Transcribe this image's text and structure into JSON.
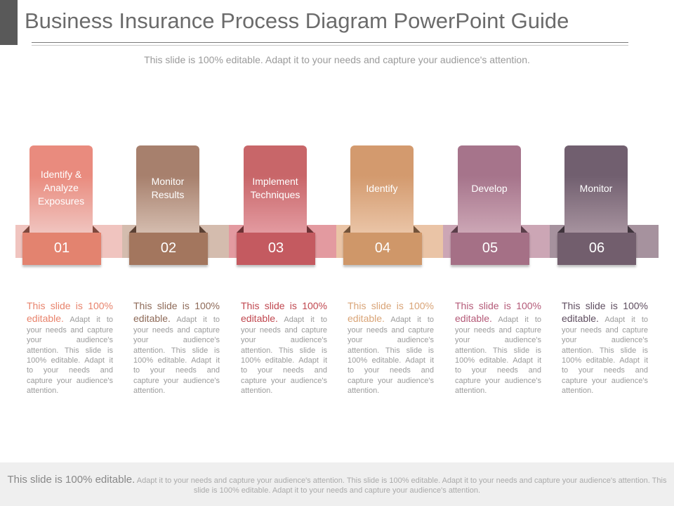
{
  "header": {
    "title": "Business Insurance Process Diagram PowerPoint Guide",
    "subtitle": "This slide is 100% editable. Adapt it to your needs and capture your audience's attention."
  },
  "steps": [
    {
      "label": "Identify & Analyze Exposures",
      "number": "01",
      "color_tab": "#e98b7e",
      "color_dark": "#e3836f",
      "color_band": "#f0c4bf",
      "desc_lead": "This slide is 100% editable.",
      "desc_body": "Adapt it to your needs and capture your audience's attention. This slide is 100% editable. Adapt it to your needs and capture your audience's attention."
    },
    {
      "label": "Monitor Results",
      "number": "02",
      "color_tab": "#a7806d",
      "color_dark": "#a3765e",
      "color_band": "#d4bcae",
      "desc_lead": "This slide is 100% editable.",
      "desc_body": "Adapt it to your needs and capture your audience's attention. This slide is 100% editable. Adapt it to your needs and capture your audience's attention."
    },
    {
      "label": "Implement Techniques",
      "number": "03",
      "color_tab": "#c86669",
      "color_dark": "#c45a60",
      "color_band": "#e39aa0",
      "desc_lead": "This slide is 100% editable.",
      "desc_body": "Adapt it to your needs and capture your audience's attention. This slide is 100% editable. Adapt it to your needs and capture your audience's attention."
    },
    {
      "label": "Identify",
      "number": "04",
      "color_tab": "#d39a6e",
      "color_dark": "#cf9769",
      "color_band": "#eac4a6",
      "desc_lead": "This slide is 100% editable.",
      "desc_body": "Adapt it to your needs and capture your audience's attention. This slide is 100% editable. Adapt it to your needs and capture your audience's attention."
    },
    {
      "label": "Develop",
      "number": "05",
      "color_tab": "#a6748b",
      "color_dark": "#a57086",
      "color_band": "#cca6b5",
      "desc_lead": "This slide is 100% editable.",
      "desc_body": "Adapt it to your needs and capture your audience's attention. This slide is 100% editable. Adapt it to your needs and capture your audience's attention."
    },
    {
      "label": "Monitor",
      "number": "06",
      "color_tab": "#715f6f",
      "color_dark": "#725e6d",
      "color_band": "#a6929e",
      "desc_lead": "This slide is 100% editable.",
      "desc_body": "Adapt it to your needs and capture your audience's attention. This slide is 100% editable. Adapt it to your needs and capture your audience's attention."
    }
  ],
  "lead_colors": [
    "#e8836c",
    "#8e6a58",
    "#c0474f",
    "#d9a477",
    "#b45a78",
    "#5f4e60"
  ],
  "footer": {
    "lead": "This slide is 100% editable.",
    "body": "Adapt it to your needs and capture your audience's attention. This slide is 100% editable. Adapt it to your needs and capture your audience's attention. This slide is 100% editable. Adapt it to your needs and capture your audience's attention."
  }
}
